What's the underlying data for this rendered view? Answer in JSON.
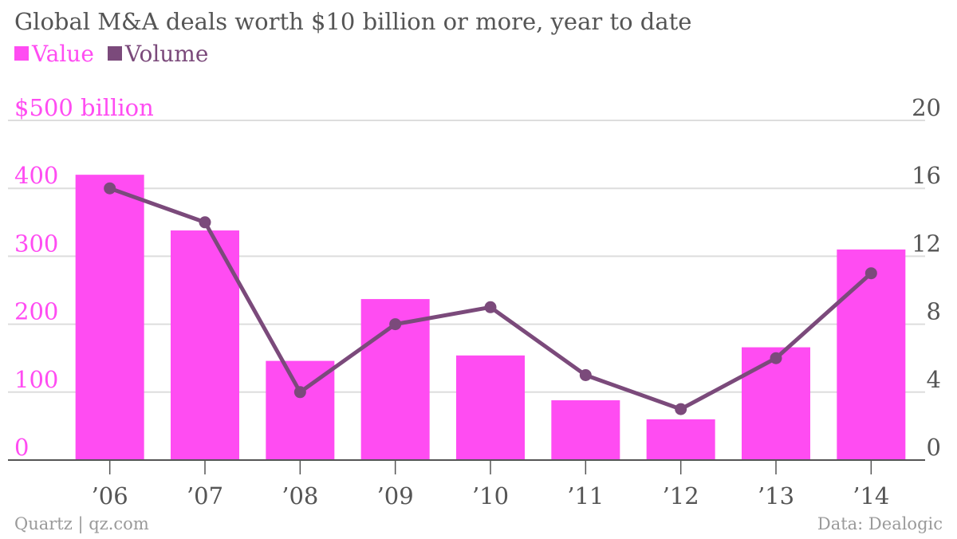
{
  "title": "Global M&A deals worth $10 billion or more, year to date",
  "legend": {
    "value_label": "Value",
    "volume_label": "Volume"
  },
  "footer": {
    "source_left": "Quartz | qz.com",
    "source_right": "Data: Dealogic"
  },
  "colors": {
    "value": "#ff4cf2",
    "volume": "#7b4a7b",
    "grid": "#dddddd",
    "text": "#555555"
  },
  "chart_data": {
    "type": "bar",
    "categories": [
      "’06",
      "’07",
      "’08",
      "’09",
      "’10",
      "’11",
      "’12",
      "’13",
      "’14"
    ],
    "series": [
      {
        "name": "Value",
        "type": "bar",
        "axis": "left",
        "values": [
          420,
          338,
          146,
          237,
          154,
          88,
          60,
          166,
          310
        ]
      },
      {
        "name": "Volume",
        "type": "line",
        "axis": "right",
        "values": [
          16,
          14,
          4,
          8,
          9,
          5,
          3,
          6,
          11
        ]
      }
    ],
    "y_left": {
      "ticks": [
        "0",
        "100",
        "200",
        "300",
        "400",
        "$500 billion"
      ],
      "tick_values": [
        0,
        100,
        200,
        300,
        400,
        500
      ],
      "ylim": [
        0,
        500
      ]
    },
    "y_right": {
      "ticks": [
        "0",
        "4",
        "8",
        "12",
        "16",
        "20"
      ],
      "tick_values": [
        0,
        4,
        8,
        12,
        16,
        20
      ],
      "ylim": [
        0,
        20
      ]
    },
    "grid": true,
    "legend_position": "top-left"
  }
}
